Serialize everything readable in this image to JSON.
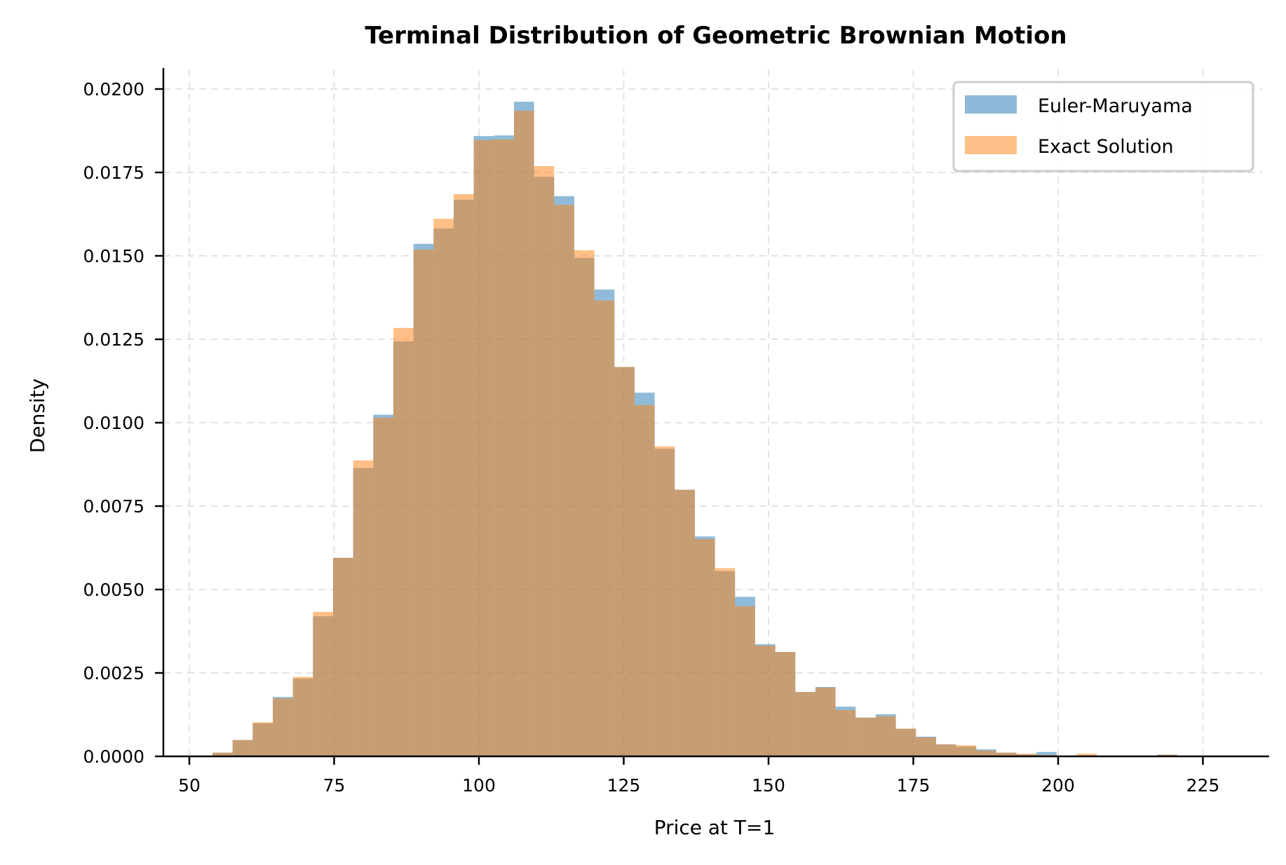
{
  "chart": {
    "title": "Terminal Distribution of Geometric Brownian Motion",
    "xlabel": "Price at T=1",
    "ylabel": "Density",
    "legend": [
      {
        "label": "Euler-Maruyama",
        "color": "#8fb9d9"
      },
      {
        "label": "Exact Solution",
        "color": "#ffbf86"
      }
    ],
    "xticks": [
      "50",
      "75",
      "100",
      "125",
      "150",
      "175",
      "200",
      "225"
    ],
    "yticks": [
      "0.0000",
      "0.0025",
      "0.0050",
      "0.0075",
      "0.0100",
      "0.0125",
      "0.0150",
      "0.0175",
      "0.0200"
    ]
  },
  "chart_data": {
    "type": "bar",
    "subtype": "overlaid histogram (density)",
    "title": "Terminal Distribution of Geometric Brownian Motion",
    "xlabel": "Price at T=1",
    "ylabel": "Density",
    "xlim": [
      45.5,
      236.4
    ],
    "ylim": [
      0,
      0.0207
    ],
    "xticks": [
      50,
      75,
      100,
      125,
      150,
      175,
      200,
      225
    ],
    "yticks": [
      0.0,
      0.0025,
      0.005,
      0.0075,
      0.01,
      0.0125,
      0.015,
      0.0175,
      0.02
    ],
    "grid": true,
    "grid_style": "dashed",
    "legend_position": "upper right",
    "bin_start": 54.0,
    "bin_width": 3.47,
    "series": [
      {
        "name": "Euler-Maruyama",
        "color": "#1f77b4",
        "alpha": 0.5,
        "values": [
          0.00011,
          0.00049,
          0.00099,
          0.00178,
          0.00233,
          0.0042,
          0.00595,
          0.00864,
          0.01024,
          0.01244,
          0.01536,
          0.01582,
          0.01668,
          0.01859,
          0.01861,
          0.01962,
          0.01737,
          0.01679,
          0.01494,
          0.01399,
          0.01167,
          0.0109,
          0.00922,
          0.00799,
          0.00659,
          0.00555,
          0.00478,
          0.00336,
          0.00313,
          0.00193,
          0.00208,
          0.00149,
          0.00116,
          0.00126,
          0.00083,
          0.00059,
          0.00036,
          0.00029,
          0.00021,
          0.00011,
          6e-05,
          0.00013,
          1e-05,
          0.0,
          0.0,
          0.0,
          0.0,
          5e-05
        ]
      },
      {
        "name": "Exact Solution",
        "color": "#ff7f0e",
        "alpha": 0.5,
        "values": [
          0.00011,
          0.00049,
          0.00102,
          0.00174,
          0.00238,
          0.00433,
          0.00595,
          0.00887,
          0.01015,
          0.01284,
          0.01519,
          0.01611,
          0.01685,
          0.01847,
          0.01849,
          0.01935,
          0.01769,
          0.01653,
          0.01517,
          0.01366,
          0.01167,
          0.01053,
          0.00929,
          0.00799,
          0.00651,
          0.00564,
          0.0045,
          0.00332,
          0.00313,
          0.00193,
          0.00206,
          0.00139,
          0.00116,
          0.0012,
          0.00083,
          0.00057,
          0.00036,
          0.00033,
          0.00017,
          0.00011,
          8e-05,
          4e-05,
          0.0,
          8e-05,
          0.0,
          0.0,
          0.0,
          5e-05
        ]
      }
    ]
  }
}
